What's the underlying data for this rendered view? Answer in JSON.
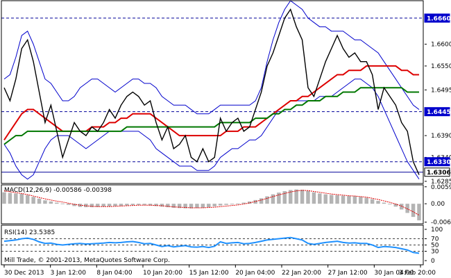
{
  "colors": {
    "price": "#000000",
    "band": "#0000cc",
    "ma_red": "#dd0000",
    "ma_green": "#007700",
    "level": "#000099",
    "macd_hist": "#b4b4b4",
    "macd_signal": "#e00000",
    "rsi": "#1e90ff",
    "grid": "#000000",
    "tag_bg": "#0000cc",
    "last_bg": "#ffffff"
  },
  "chart_data": [
    {
      "type": "line",
      "name": "price",
      "ylim": [
        1.628,
        1.67
      ],
      "y_ticks": [
        "1.6600",
        "1.6550",
        "1.6495",
        "1.6390",
        "1.6340",
        "1.6285"
      ],
      "levels": [
        {
          "label": "1.6660",
          "value": 1.666,
          "style": "dashed",
          "tag": true
        },
        {
          "label": "1.6445",
          "value": 1.6445,
          "style": "dashed",
          "tag": true
        },
        {
          "label": "1.6330",
          "value": 1.633,
          "style": "dashed",
          "tag": true
        },
        {
          "label": "1.6306",
          "value": 1.6306,
          "style": "solid",
          "tag": false,
          "last": true
        }
      ],
      "x_labels": [
        "30 Dec 2013",
        "3 Jan 12:00",
        "8 Jan 04:00",
        "10 Jan 20:00",
        "15 Jan 12:00",
        "20 Jan 04:00",
        "22 Jan 20:00",
        "27 Jan 12:00",
        "30 Jan 04:00",
        "3 Feb 20:00"
      ],
      "price": [
        1.65,
        1.647,
        1.652,
        1.659,
        1.661,
        1.656,
        1.649,
        1.642,
        1.646,
        1.64,
        1.634,
        1.638,
        1.642,
        1.64,
        1.639,
        1.641,
        1.64,
        1.642,
        1.645,
        1.643,
        1.646,
        1.648,
        1.649,
        1.648,
        1.646,
        1.647,
        1.642,
        1.638,
        1.641,
        1.636,
        1.637,
        1.639,
        1.634,
        1.633,
        1.636,
        1.633,
        1.634,
        1.643,
        1.64,
        1.642,
        1.643,
        1.64,
        1.641,
        1.645,
        1.649,
        1.655,
        1.658,
        1.662,
        1.666,
        1.668,
        1.664,
        1.661,
        1.65,
        1.648,
        1.652,
        1.656,
        1.659,
        1.662,
        1.659,
        1.657,
        1.658,
        1.656,
        1.656,
        1.653,
        1.645,
        1.65,
        1.648,
        1.646,
        1.642,
        1.64,
        1.633,
        1.63
      ],
      "bb_upper": [
        1.652,
        1.653,
        1.657,
        1.662,
        1.663,
        1.66,
        1.656,
        1.652,
        1.651,
        1.649,
        1.647,
        1.647,
        1.648,
        1.65,
        1.651,
        1.652,
        1.652,
        1.651,
        1.65,
        1.649,
        1.65,
        1.651,
        1.652,
        1.652,
        1.651,
        1.651,
        1.65,
        1.648,
        1.647,
        1.646,
        1.646,
        1.646,
        1.645,
        1.644,
        1.644,
        1.644,
        1.645,
        1.646,
        1.646,
        1.646,
        1.646,
        1.646,
        1.646,
        1.647,
        1.65,
        1.656,
        1.661,
        1.665,
        1.668,
        1.67,
        1.669,
        1.668,
        1.666,
        1.665,
        1.664,
        1.664,
        1.663,
        1.663,
        1.663,
        1.662,
        1.661,
        1.661,
        1.66,
        1.659,
        1.658,
        1.656,
        1.654,
        1.652,
        1.65,
        1.648,
        1.646,
        1.645
      ],
      "bb_lower": [
        1.637,
        1.635,
        1.632,
        1.63,
        1.629,
        1.63,
        1.633,
        1.636,
        1.638,
        1.639,
        1.639,
        1.639,
        1.638,
        1.637,
        1.636,
        1.637,
        1.638,
        1.639,
        1.64,
        1.64,
        1.64,
        1.64,
        1.64,
        1.64,
        1.639,
        1.638,
        1.636,
        1.635,
        1.634,
        1.633,
        1.632,
        1.632,
        1.632,
        1.631,
        1.631,
        1.631,
        1.632,
        1.634,
        1.635,
        1.636,
        1.636,
        1.637,
        1.638,
        1.638,
        1.639,
        1.641,
        1.643,
        1.645,
        1.646,
        1.647,
        1.647,
        1.647,
        1.647,
        1.647,
        1.648,
        1.648,
        1.648,
        1.649,
        1.65,
        1.651,
        1.652,
        1.652,
        1.651,
        1.65,
        1.648,
        1.645,
        1.642,
        1.639,
        1.636,
        1.633,
        1.631,
        1.629
      ],
      "ma_red": [
        1.638,
        1.64,
        1.642,
        1.644,
        1.645,
        1.645,
        1.644,
        1.643,
        1.642,
        1.641,
        1.64,
        1.64,
        1.64,
        1.64,
        1.64,
        1.641,
        1.641,
        1.641,
        1.642,
        1.642,
        1.643,
        1.643,
        1.644,
        1.644,
        1.644,
        1.644,
        1.643,
        1.642,
        1.641,
        1.64,
        1.639,
        1.639,
        1.639,
        1.639,
        1.639,
        1.639,
        1.639,
        1.639,
        1.64,
        1.64,
        1.64,
        1.641,
        1.641,
        1.641,
        1.642,
        1.643,
        1.644,
        1.645,
        1.646,
        1.647,
        1.647,
        1.648,
        1.648,
        1.649,
        1.65,
        1.651,
        1.652,
        1.653,
        1.653,
        1.654,
        1.654,
        1.654,
        1.655,
        1.655,
        1.655,
        1.655,
        1.655,
        1.655,
        1.654,
        1.654,
        1.653,
        1.653
      ],
      "ma_green": [
        1.637,
        1.638,
        1.639,
        1.639,
        1.64,
        1.64,
        1.64,
        1.64,
        1.64,
        1.64,
        1.64,
        1.64,
        1.64,
        1.64,
        1.64,
        1.64,
        1.64,
        1.64,
        1.64,
        1.64,
        1.64,
        1.641,
        1.641,
        1.641,
        1.641,
        1.641,
        1.641,
        1.641,
        1.641,
        1.641,
        1.641,
        1.641,
        1.641,
        1.641,
        1.641,
        1.641,
        1.641,
        1.642,
        1.642,
        1.642,
        1.642,
        1.642,
        1.642,
        1.643,
        1.643,
        1.643,
        1.644,
        1.644,
        1.645,
        1.645,
        1.646,
        1.646,
        1.647,
        1.647,
        1.647,
        1.648,
        1.648,
        1.648,
        1.649,
        1.649,
        1.649,
        1.65,
        1.65,
        1.65,
        1.65,
        1.65,
        1.65,
        1.65,
        1.65,
        1.649,
        1.649,
        1.649
      ]
    },
    {
      "type": "bar",
      "name": "macd",
      "label": "MACD(12,26,9) -0.00586 -0.00398",
      "ylim": [
        -0.007,
        0.0066
      ],
      "y_ticks": [
        "0.00593",
        "0.00",
        "-0.00643"
      ],
      "hist": [
        0.004,
        0.0038,
        0.0036,
        0.0035,
        0.003,
        0.0024,
        0.0018,
        0.0012,
        0.0008,
        0.0004,
        0.0001,
        -0.0004,
        -0.0008,
        -0.0011,
        -0.0012,
        -0.0012,
        -0.0011,
        -0.001,
        -0.0009,
        -0.0008,
        -0.0007,
        -0.0006,
        -0.0005,
        -0.0004,
        -0.0004,
        -0.0006,
        -0.0008,
        -0.001,
        -0.0012,
        -0.0014,
        -0.0015,
        -0.0016,
        -0.0016,
        -0.0015,
        -0.0014,
        -0.0012,
        -0.0009,
        -0.0006,
        -0.0004,
        -0.0002,
        0.0001,
        0.0004,
        0.0008,
        0.0013,
        0.0019,
        0.0026,
        0.0033,
        0.0039,
        0.0044,
        0.0048,
        0.005,
        0.0049,
        0.0045,
        0.004,
        0.0036,
        0.0033,
        0.0031,
        0.003,
        0.0028,
        0.0027,
        0.0026,
        0.0024,
        0.0021,
        0.0016,
        0.001,
        0.0004,
        -0.0002,
        -0.001,
        -0.002,
        -0.0032,
        -0.0046,
        -0.0058
      ],
      "signal": [
        0.0045,
        0.0042,
        0.0039,
        0.0036,
        0.0032,
        0.0027,
        0.0022,
        0.0017,
        0.0013,
        0.0009,
        0.0006,
        0.0002,
        -0.0002,
        -0.0005,
        -0.0007,
        -0.0009,
        -0.001,
        -0.001,
        -0.001,
        -0.0009,
        -0.0008,
        -0.0007,
        -0.0006,
        -0.0005,
        -0.0005,
        -0.0005,
        -0.0006,
        -0.0007,
        -0.0009,
        -0.0011,
        -0.0012,
        -0.0013,
        -0.0014,
        -0.0014,
        -0.0014,
        -0.0013,
        -0.0012,
        -0.001,
        -0.0008,
        -0.0006,
        -0.0004,
        -0.0001,
        0.0003,
        0.0008,
        0.0013,
        0.0019,
        0.0025,
        0.0031,
        0.0036,
        0.0041,
        0.0045,
        0.0047,
        0.0046,
        0.0043,
        0.004,
        0.0037,
        0.0034,
        0.0032,
        0.003,
        0.0028,
        0.0027,
        0.0025,
        0.0023,
        0.0019,
        0.0015,
        0.001,
        0.0005,
        -0.0001,
        -0.0008,
        -0.0018,
        -0.0028,
        -0.004
      ]
    },
    {
      "type": "line",
      "name": "rsi",
      "label": "RSI(14) 23.5385",
      "ylim": [
        0,
        100
      ],
      "y_ticks": [
        "100",
        "70",
        "50",
        "30",
        "0"
      ],
      "levels": [
        70,
        50,
        30
      ],
      "values": [
        62,
        64,
        66,
        70,
        72,
        68,
        60,
        55,
        56,
        52,
        50,
        52,
        54,
        55,
        53,
        54,
        55,
        56,
        58,
        57,
        58,
        60,
        61,
        58,
        54,
        55,
        50,
        45,
        48,
        44,
        46,
        48,
        44,
        43,
        45,
        42,
        46,
        60,
        55,
        57,
        58,
        54,
        55,
        58,
        62,
        66,
        68,
        70,
        72,
        74,
        70,
        66,
        55,
        52,
        55,
        58,
        60,
        62,
        58,
        56,
        57,
        55,
        55,
        50,
        42,
        45,
        44,
        42,
        38,
        34,
        26,
        23.5
      ]
    }
  ],
  "footer": {
    "copyright": "Mill Trade, © 2001-2013, MetaQuotes Software Corp."
  }
}
